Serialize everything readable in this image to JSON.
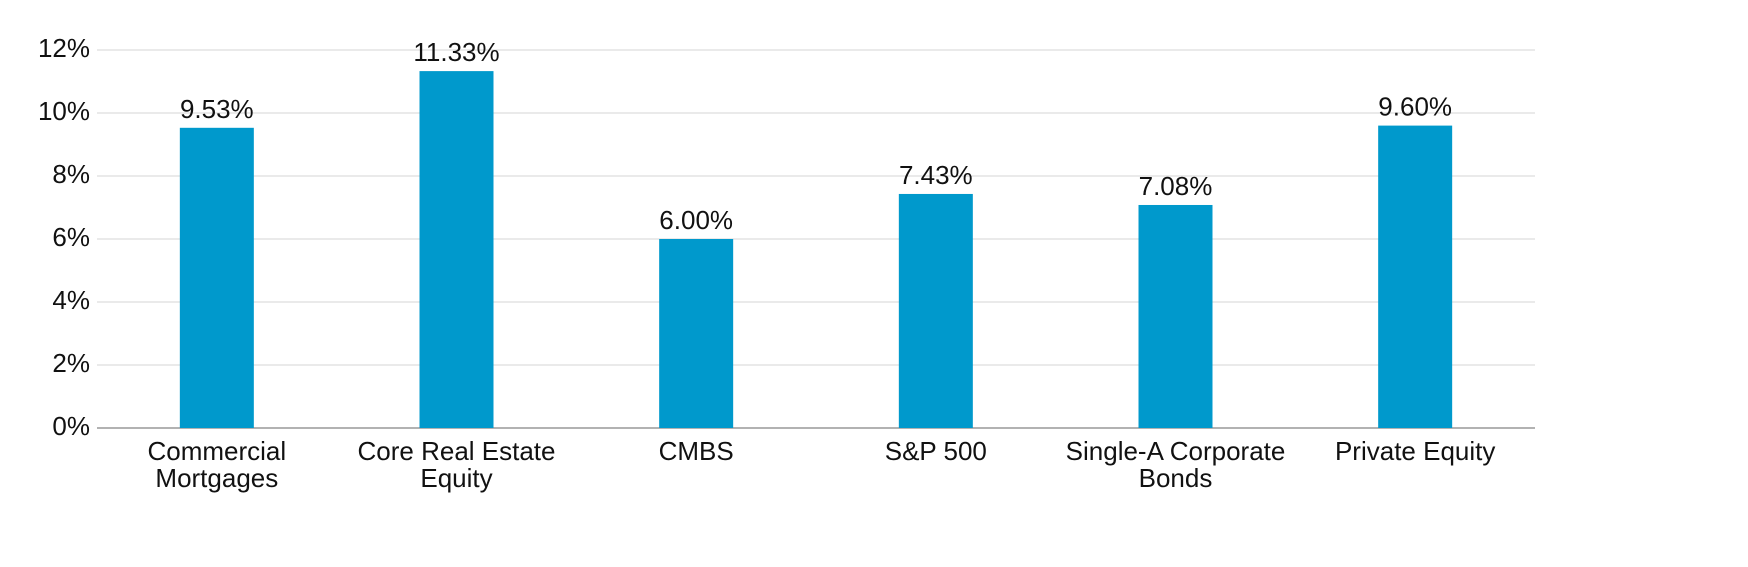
{
  "chart_data": {
    "type": "bar",
    "categories": [
      "Commercial\nMortgages",
      "Core Real Estate\nEquity",
      "CMBS",
      "S&P 500",
      "Single-A Corporate\nBonds",
      "Private Equity"
    ],
    "values": [
      9.53,
      11.33,
      6.0,
      7.43,
      7.08,
      9.6
    ],
    "value_labels": [
      "9.53%",
      "11.33%",
      "6.00%",
      "7.43%",
      "7.08%",
      "9.60%"
    ],
    "color": "#0099cc",
    "ylim": [
      0,
      12
    ],
    "yticks": [
      {
        "value": 0,
        "label": "0%"
      },
      {
        "value": 2,
        "label": "2%"
      },
      {
        "value": 4,
        "label": "4%"
      },
      {
        "value": 6,
        "label": "6%"
      },
      {
        "value": 8,
        "label": "8%"
      },
      {
        "value": 10,
        "label": "10%"
      },
      {
        "value": 12,
        "label": "12%"
      }
    ],
    "grid": true
  }
}
